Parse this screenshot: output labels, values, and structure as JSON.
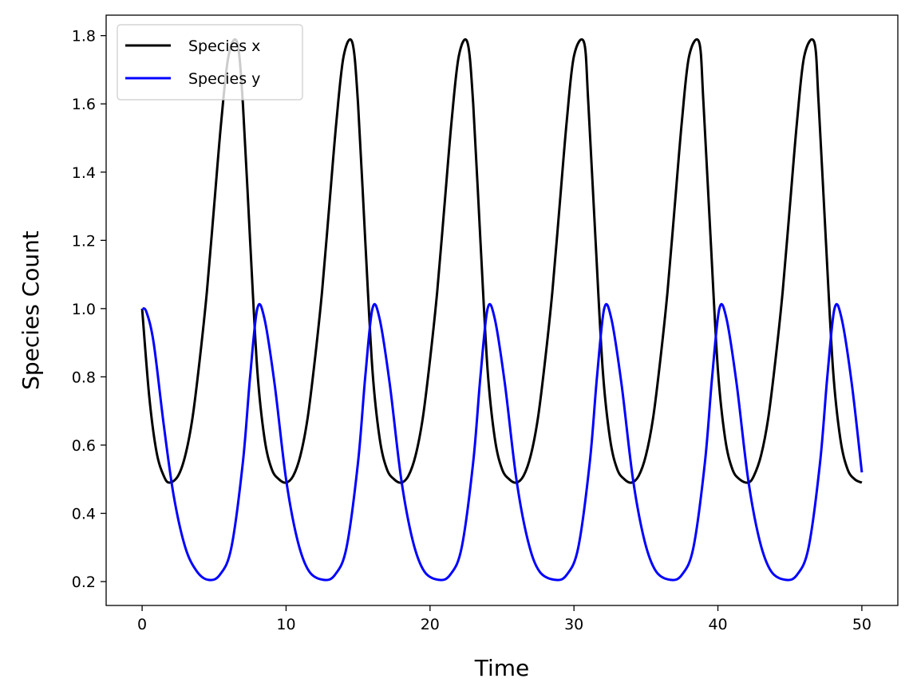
{
  "chart_data": {
    "type": "line",
    "title": "",
    "xlabel": "Time",
    "ylabel": "Species Count",
    "xlim": [
      -2.5,
      52.5
    ],
    "ylim": [
      0.13,
      1.86
    ],
    "xticks": [
      0,
      10,
      20,
      30,
      40,
      50
    ],
    "xtick_labels": [
      "0",
      "10",
      "20",
      "30",
      "40",
      "50"
    ],
    "yticks": [
      0.2,
      0.4,
      0.6,
      0.8,
      1.0,
      1.2,
      1.4,
      1.6,
      1.8
    ],
    "ytick_labels": [
      "0.2",
      "0.4",
      "0.6",
      "0.8",
      "1.0",
      "1.2",
      "1.4",
      "1.6",
      "1.8"
    ],
    "grid": false,
    "legend_position": "top-left",
    "series": [
      {
        "name": "Species x",
        "color": "#000000",
        "x": [
          0,
          0.5,
          1.0,
          1.5,
          1.9,
          2.5,
          3.0,
          3.5,
          4.0,
          4.5,
          5.0,
          5.5,
          6.0,
          6.6,
          7.0,
          7.5,
          8.0,
          8.5,
          9.0,
          9.5,
          10.0,
          10.5,
          11.0,
          11.5,
          12.0,
          12.5,
          13.0,
          13.5,
          14.0,
          14.6,
          15.0,
          15.5,
          16.0,
          16.5,
          17.0,
          17.5,
          18.0,
          18.5,
          19.0,
          19.5,
          20.0,
          20.5,
          21.0,
          21.5,
          22.0,
          22.6,
          23.0,
          23.5,
          24.0,
          24.5,
          25.0,
          25.5,
          26.0,
          26.5,
          27.0,
          27.5,
          28.0,
          28.5,
          29.0,
          29.5,
          30.0,
          30.7,
          31.0,
          31.5,
          32.0,
          32.5,
          33.0,
          33.5,
          34.0,
          34.5,
          35.0,
          35.5,
          36.0,
          36.5,
          37.0,
          37.5,
          38.0,
          38.7,
          39.0,
          39.5,
          40.0,
          40.5,
          41.0,
          41.5,
          42.1,
          42.5,
          43.0,
          43.5,
          44.0,
          44.5,
          45.0,
          45.5,
          46.0,
          46.7,
          47.0,
          47.5,
          48.0,
          48.5,
          49.0,
          49.5,
          50.0
        ],
        "y": [
          1.0,
          0.74,
          0.58,
          0.51,
          0.49,
          0.51,
          0.57,
          0.68,
          0.85,
          1.05,
          1.3,
          1.55,
          1.74,
          1.78,
          1.6,
          1.2,
          0.82,
          0.62,
          0.53,
          0.5,
          0.49,
          0.51,
          0.57,
          0.68,
          0.85,
          1.05,
          1.3,
          1.55,
          1.74,
          1.78,
          1.6,
          1.2,
          0.82,
          0.62,
          0.53,
          0.5,
          0.49,
          0.51,
          0.57,
          0.68,
          0.85,
          1.05,
          1.3,
          1.55,
          1.74,
          1.78,
          1.6,
          1.2,
          0.82,
          0.62,
          0.53,
          0.5,
          0.49,
          0.51,
          0.57,
          0.68,
          0.85,
          1.05,
          1.3,
          1.55,
          1.74,
          1.78,
          1.6,
          1.2,
          0.82,
          0.62,
          0.53,
          0.5,
          0.49,
          0.51,
          0.57,
          0.68,
          0.85,
          1.05,
          1.3,
          1.55,
          1.74,
          1.78,
          1.6,
          1.2,
          0.82,
          0.62,
          0.53,
          0.5,
          0.49,
          0.51,
          0.57,
          0.68,
          0.85,
          1.05,
          1.3,
          1.55,
          1.74,
          1.78,
          1.6,
          1.2,
          0.82,
          0.62,
          0.53,
          0.5,
          0.49
        ]
      },
      {
        "name": "Species y",
        "color": "#0000ff",
        "x": [
          0,
          0.3,
          0.8,
          1.5,
          2.2,
          3.0,
          3.8,
          4.6,
          5.4,
          6.2,
          7.0,
          7.5,
          8.0,
          8.5,
          9.2,
          10.0,
          10.8,
          11.6,
          12.6,
          13.4,
          14.2,
          15.0,
          15.5,
          16.0,
          16.5,
          17.2,
          18.0,
          18.8,
          19.6,
          20.6,
          21.4,
          22.2,
          23.0,
          23.5,
          24.0,
          24.5,
          25.2,
          26.0,
          26.8,
          27.6,
          28.7,
          29.5,
          30.3,
          31.1,
          31.6,
          32.1,
          32.6,
          33.3,
          34.1,
          34.9,
          35.7,
          36.7,
          37.5,
          38.3,
          39.1,
          39.6,
          40.1,
          40.6,
          41.3,
          42.1,
          42.9,
          43.7,
          44.7,
          45.5,
          46.3,
          47.1,
          47.6,
          48.1,
          48.6,
          49.3,
          50.0
        ],
        "y": [
          1.0,
          0.99,
          0.9,
          0.66,
          0.45,
          0.3,
          0.23,
          0.205,
          0.22,
          0.3,
          0.55,
          0.8,
          1.0,
          0.97,
          0.78,
          0.5,
          0.32,
          0.23,
          0.205,
          0.22,
          0.3,
          0.55,
          0.8,
          1.0,
          0.97,
          0.78,
          0.5,
          0.32,
          0.23,
          0.205,
          0.22,
          0.3,
          0.55,
          0.8,
          1.0,
          0.97,
          0.78,
          0.5,
          0.32,
          0.23,
          0.205,
          0.22,
          0.3,
          0.55,
          0.8,
          1.0,
          0.97,
          0.78,
          0.5,
          0.32,
          0.23,
          0.205,
          0.22,
          0.3,
          0.55,
          0.8,
          1.0,
          0.97,
          0.78,
          0.5,
          0.32,
          0.23,
          0.205,
          0.22,
          0.3,
          0.55,
          0.8,
          1.0,
          0.97,
          0.78,
          0.52
        ]
      }
    ]
  }
}
